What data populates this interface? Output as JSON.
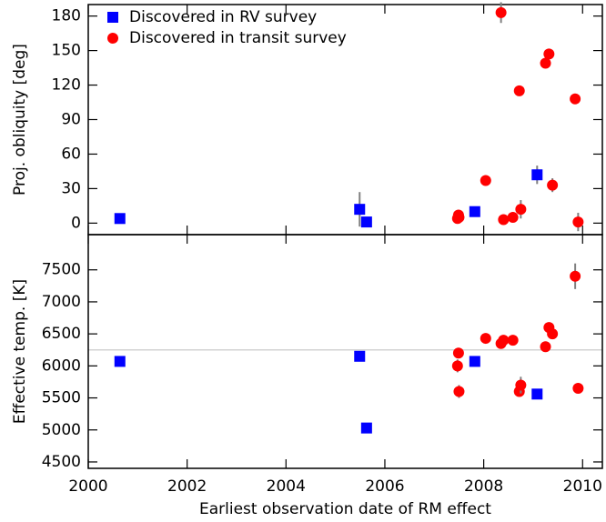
{
  "chart_data": [
    {
      "type": "scatter",
      "ylabel": "Proj. obliquity [deg]",
      "xlim": [
        2000,
        2010.4
      ],
      "ylim": [
        -10,
        190
      ],
      "yticks": [
        0,
        30,
        60,
        90,
        120,
        150,
        180
      ],
      "legend": "upper left",
      "error_color": "#808080",
      "series": [
        {
          "name": "Discovered in RV survey",
          "color": "#0000ff",
          "marker": "square",
          "x": [
            2000.64,
            2005.49,
            2005.63,
            2007.82,
            2009.08
          ],
          "values": [
            4,
            12,
            1,
            10,
            42
          ],
          "errors": [
            2,
            15,
            2,
            3,
            8
          ]
        },
        {
          "name": "Discovered in transit survey",
          "color": "#ff0000",
          "marker": "circle",
          "x": [
            2007.47,
            2007.49,
            2007.5,
            2008.04,
            2008.35,
            2008.4,
            2008.59,
            2008.72,
            2008.75,
            2009.25,
            2009.32,
            2009.39,
            2009.85,
            2009.91
          ],
          "values": [
            4,
            7,
            5,
            37,
            183,
            3,
            5,
            115,
            12,
            139,
            147,
            33,
            108,
            1
          ],
          "errors": [
            3,
            3,
            3,
            3,
            9,
            2,
            3,
            3,
            8,
            4,
            4,
            6,
            3,
            8
          ]
        }
      ]
    },
    {
      "type": "scatter",
      "ylabel": "Effective temp. [K]",
      "xlabel": "Earliest observation date of RM effect",
      "xlim": [
        2000,
        2010.4
      ],
      "xticks": [
        2000,
        2002,
        2004,
        2006,
        2008,
        2010
      ],
      "ylim": [
        4400,
        8050
      ],
      "yticks": [
        4500,
        5000,
        5500,
        6000,
        6500,
        7000,
        7500
      ],
      "hline": 6250,
      "hline_color": "#d3d3d3",
      "error_color": "#808080",
      "series": [
        {
          "name": "Discovered in RV survey",
          "color": "#0000ff",
          "marker": "square",
          "x": [
            2000.64,
            2005.49,
            2005.63,
            2007.82,
            2009.08
          ],
          "values": [
            6070,
            6150,
            5030,
            6070,
            5560
          ],
          "errors": [
            50,
            50,
            50,
            50,
            50
          ]
        },
        {
          "name": "Discovered in transit survey",
          "color": "#ff0000",
          "marker": "circle",
          "x": [
            2007.47,
            2007.49,
            2007.5,
            2008.04,
            2008.35,
            2008.4,
            2008.59,
            2008.72,
            2008.75,
            2009.25,
            2009.32,
            2009.39,
            2009.85,
            2009.91
          ],
          "values": [
            6000,
            6200,
            5600,
            6430,
            6350,
            6400,
            6400,
            5600,
            5700,
            6300,
            6600,
            6500,
            7400,
            5650
          ],
          "errors": [
            100,
            80,
            100,
            50,
            50,
            80,
            80,
            80,
            130,
            80,
            80,
            80,
            200,
            60
          ]
        }
      ]
    }
  ]
}
